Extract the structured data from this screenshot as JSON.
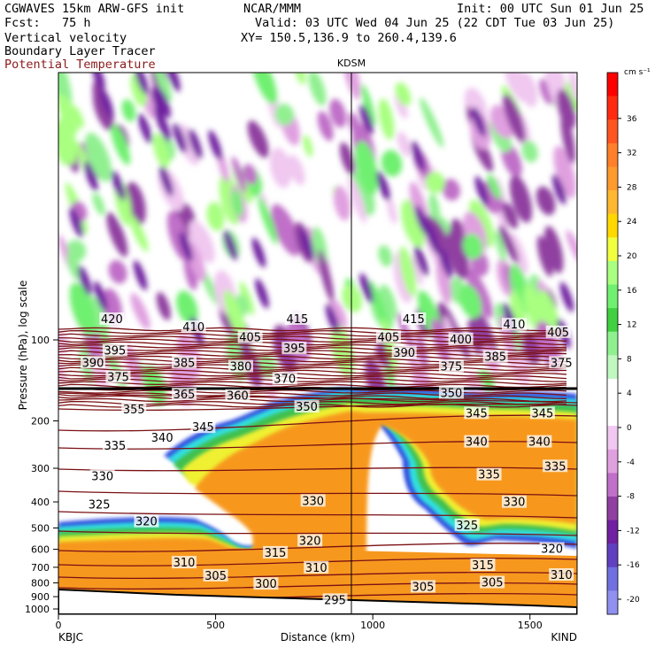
{
  "header": {
    "left": [
      "CGWAVES 15km ARW-GFS init",
      "Fcst:   75 h",
      "Vertical velocity",
      "Boundary Layer Tracer",
      "Potential Temperature"
    ],
    "center_title": "NCAR/MMM",
    "init": "Init: 00 UTC Sun 01 Jun 25",
    "valid": "Valid: 03 UTC Wed 04 Jun 25 (22 CDT Tue 03 Jun 25)",
    "xy": "XY= 150.5,136.9 to 260.4,139.6",
    "station_top": "KDSM",
    "left_end": "KBJC",
    "right_end": "KIND"
  },
  "colors": {
    "theta_line": "#7a1014",
    "theta_label_text": "#8b1a1a"
  },
  "chart_data": {
    "type": "heatmap",
    "title": "",
    "xlabel": "Distance (km)",
    "ylabel": "Pressure (hPa), log scale",
    "x_ticks": [
      0,
      500,
      1000,
      1500
    ],
    "xlim": [
      0,
      1650
    ],
    "y_scale": "log",
    "y_ticks": [
      100,
      200,
      300,
      400,
      500,
      600,
      700,
      800,
      900,
      1000
    ],
    "y_inverted": true,
    "colorbar": {
      "unit": "cm s⁻¹",
      "ticks": [
        36,
        32,
        28,
        24,
        20,
        16,
        12,
        8,
        4,
        0,
        -4,
        -8,
        -12,
        -16,
        -20
      ],
      "colors": [
        "#ff0000",
        "#ff2a10",
        "#ff5520",
        "#ff7f2a",
        "#ff9a2e",
        "#ffb830",
        "#ffd800",
        "#f0ff40",
        "#a8ff80",
        "#70f070",
        "#40d040",
        "#90f090",
        "#c0f8c0",
        "#ffffff",
        "#ffffff",
        "#f0c8f0",
        "#e0a0e0",
        "#c070c8",
        "#9040a0",
        "#7020a0",
        "#6040c0",
        "#7070e0",
        "#9090f0"
      ]
    },
    "theta_labels": [
      {
        "v": "420",
        "x": 170,
        "p": 84
      },
      {
        "v": "415",
        "x": 760,
        "p": 84
      },
      {
        "v": "415",
        "x": 1130,
        "p": 84
      },
      {
        "v": "410",
        "x": 430,
        "p": 90
      },
      {
        "v": "410",
        "x": 1450,
        "p": 88
      },
      {
        "v": "405",
        "x": 610,
        "p": 98
      },
      {
        "v": "405",
        "x": 1050,
        "p": 98
      },
      {
        "v": "405",
        "x": 1590,
        "p": 94
      },
      {
        "v": "400",
        "x": 1280,
        "p": 100
      },
      {
        "v": "395",
        "x": 180,
        "p": 110
      },
      {
        "v": "395",
        "x": 750,
        "p": 108
      },
      {
        "v": "390",
        "x": 110,
        "p": 122
      },
      {
        "v": "390",
        "x": 1100,
        "p": 112
      },
      {
        "v": "385",
        "x": 400,
        "p": 122
      },
      {
        "v": "385",
        "x": 1390,
        "p": 116
      },
      {
        "v": "380",
        "x": 580,
        "p": 126
      },
      {
        "v": "375",
        "x": 190,
        "p": 138
      },
      {
        "v": "375",
        "x": 1250,
        "p": 126
      },
      {
        "v": "375",
        "x": 1600,
        "p": 122
      },
      {
        "v": "370",
        "x": 720,
        "p": 140
      },
      {
        "v": "365",
        "x": 400,
        "p": 160
      },
      {
        "v": "360",
        "x": 570,
        "p": 162
      },
      {
        "v": "355",
        "x": 240,
        "p": 182
      },
      {
        "v": "350",
        "x": 790,
        "p": 178
      },
      {
        "v": "350",
        "x": 1250,
        "p": 158
      },
      {
        "v": "345",
        "x": 460,
        "p": 212
      },
      {
        "v": "345",
        "x": 1330,
        "p": 188
      },
      {
        "v": "345",
        "x": 1540,
        "p": 188
      },
      {
        "v": "340",
        "x": 330,
        "p": 232
      },
      {
        "v": "340",
        "x": 1330,
        "p": 240
      },
      {
        "v": "340",
        "x": 1530,
        "p": 240
      },
      {
        "v": "335",
        "x": 180,
        "p": 248
      },
      {
        "v": "335",
        "x": 1370,
        "p": 318
      },
      {
        "v": "335",
        "x": 1580,
        "p": 296
      },
      {
        "v": "330",
        "x": 140,
        "p": 322
      },
      {
        "v": "330",
        "x": 810,
        "p": 398
      },
      {
        "v": "330",
        "x": 1450,
        "p": 402
      },
      {
        "v": "325",
        "x": 130,
        "p": 410
      },
      {
        "v": "325",
        "x": 1300,
        "p": 490
      },
      {
        "v": "320",
        "x": 280,
        "p": 475
      },
      {
        "v": "320",
        "x": 800,
        "p": 560
      },
      {
        "v": "320",
        "x": 1570,
        "p": 600
      },
      {
        "v": "315",
        "x": 690,
        "p": 620
      },
      {
        "v": "315",
        "x": 1350,
        "p": 690
      },
      {
        "v": "310",
        "x": 400,
        "p": 675
      },
      {
        "v": "310",
        "x": 820,
        "p": 705
      },
      {
        "v": "310",
        "x": 1600,
        "p": 750
      },
      {
        "v": "305",
        "x": 500,
        "p": 755
      },
      {
        "v": "305",
        "x": 1160,
        "p": 830
      },
      {
        "v": "305",
        "x": 1380,
        "p": 800
      },
      {
        "v": "300",
        "x": 660,
        "p": 810
      },
      {
        "v": "295",
        "x": 880,
        "p": 930
      }
    ]
  }
}
